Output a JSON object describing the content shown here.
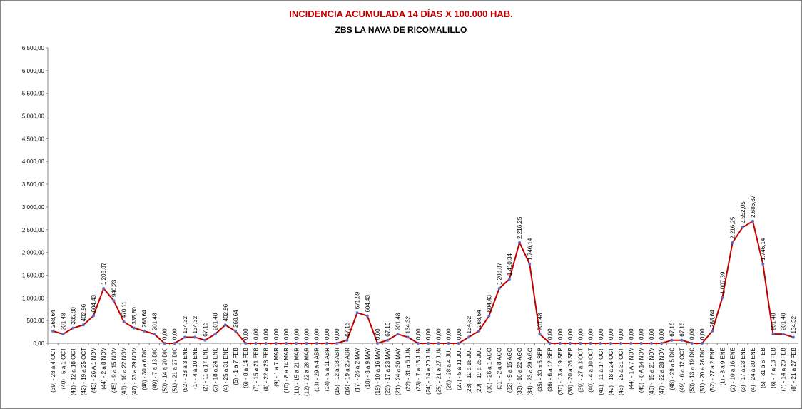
{
  "chart_data": {
    "type": "line",
    "title": "INCIDENCIA ACUMULADA 14 DÍAS X 100.000 HAB.",
    "subtitle": "ZBS LA NAVA DE RICOMALILLO",
    "categories": [
      "(39) - 28 a 4 OCT",
      "(40) - 5 a 1 OCT",
      "(41) - 12 a 18 OCT",
      "(42) - 19 a 25 OCT",
      "(43) - 26 A 1 NOV",
      "(44) - 2 a 8 NOV",
      "(45) - 9 a 15 NOV",
      "(46) - 16 a 22 NOV",
      "(47) - 23 a 29 NOV",
      "(48) - 30 a 6 DIC",
      "(49) - 7 a 13 DIC",
      "(50) - 14 a 20 DIC",
      "(51) - 21 a 27 DIC",
      "(52) - 28 a 3 ENE",
      "(1) - 4 a 10 ENE",
      "(2) - 11 a 17 ENE",
      "(3) - 18 a 24 ENE",
      "(4) - 25 a 31 ENE",
      "(5) - 1 a 7 FEB",
      "(6) - 8 a 14 FEB",
      "(7) - 15 a 21 FEB",
      "(8) - 22 a 28 FEB",
      "(9) - 1 a 7 MAR",
      "(10) - 8 a 14 MAR",
      "(11) - 15 a 21 MAR",
      "(12) - 22 a 28 MAR",
      "(13) - 29 a 4 ABR",
      "(14) - 5 a 11 ABR",
      "(15) - 12 a 18 ABR",
      "(16) - 19 a 25 ABR",
      "(17) - 26 a 2 MAY",
      "(18) - 3 a 9 MAY",
      "(19) - 10 a 16 MAY",
      "(20) - 17 a 23 MAY",
      "(21) - 24 a 30 MAY",
      "(22) - 31 a 6 JUN",
      "(23) - 7 a 13 JUN",
      "(24) - 14 a 20 JUN",
      "(25) - 21 a 27 JUN",
      "(26) - 28 a 4 JUL",
      "(27) - 5 a 11 JUL",
      "(28) - 12 a 18 JUL",
      "(29) - 19 a 25 JUL",
      "(30) - 26 a 1 AGO",
      "(31) - 2 a 8 AGO",
      "(32) - 9 a 15 AGO",
      "(33) - 16 a 22 AGO",
      "(34) - 23 a 29 AGO",
      "(35) - 30 a 5 SEP",
      "(36) - 6 a 12 SEP",
      "(37) - 13 a 19 SEP",
      "(38) - 20 a 26 SEP",
      "(39) - 27 a 3 OCT",
      "(40) - 4 a 10 OCT",
      "(41) - 11 a 17 OCT",
      "(42) - 18 a 24 OCT",
      "(43) - 25 a 31 OCT",
      "(44) - 1 A 7 NOV",
      "(45) - 8 A 14 NOV",
      "(46) - 15 a 21 NOV",
      "(47) - 22 a 28 NOV",
      "(48) - 29 a 5 DIC",
      "(49) - 6 a 12 OCT",
      "(50) - 13 a 19 DIC",
      "(51) - 20 a 26 DIC",
      "(52) - 27 a 2 ENE",
      "(1) - 3 a 9 ENE",
      "(2) - 10 a 16 ENE",
      "(3) - 17 a 23 ENE",
      "(4) - 24 a 30 ENE",
      "(5) - 31 a 6 FEB",
      "(6) - 7 a 13 FEB",
      "(7) - 14 a 20 FEB",
      "(8) - 21 a 27 FEB"
    ],
    "values": [
      268.64,
      201.48,
      335.8,
      402.96,
      604.43,
      1208.87,
      940.23,
      470.11,
      335.8,
      268.64,
      201.48,
      0,
      0,
      134.32,
      134.32,
      67.16,
      201.48,
      402.96,
      268.64,
      0,
      0,
      0,
      0,
      0,
      0,
      0,
      0,
      0,
      0,
      67.16,
      671.59,
      604.43,
      0,
      67.16,
      201.48,
      134.32,
      0,
      0,
      0,
      0,
      0,
      134.32,
      268.64,
      604.43,
      1208.87,
      1410.34,
      2216.25,
      1746.14,
      201.48,
      0,
      0,
      0,
      0,
      0,
      0,
      0,
      0,
      0,
      0,
      0,
      0,
      67.16,
      67.16,
      0,
      0,
      268.64,
      1007.39,
      2216.25,
      2552.05,
      2686.37,
      1746.14,
      201.48,
      201.48,
      134.32
    ],
    "value_labels": [
      "268,64",
      "201,48",
      "335,80",
      "402,96",
      "604,43",
      "1.208,87",
      "940,23",
      "470,11",
      "335,80",
      "268,64",
      "201,48",
      "0,00",
      "0,00",
      "134,32",
      "134,32",
      "67,16",
      "201,48",
      "402,96",
      "268,64",
      "0,00",
      "0,00",
      "0,00",
      "0,00",
      "0,00",
      "0,00",
      "0,00",
      "0,00",
      "0,00",
      "0,00",
      "67,16",
      "671,59",
      "604,43",
      "0,00",
      "67,16",
      "201,48",
      "134,32",
      "0,00",
      "0,00",
      "0,00",
      "0,00",
      "0,00",
      "134,32",
      "268,64",
      "604,43",
      "1.208,87",
      "1.410,34",
      "2.216,25",
      "1.746,14",
      "201,48",
      "0,00",
      "0,00",
      "0,00",
      "0,00",
      "0,00",
      "0,00",
      "0,00",
      "0,00",
      "0,00",
      "0,00",
      "0,00",
      "0,00",
      "67,16",
      "67,16",
      "0,00",
      "0,00",
      "268,64",
      "1.007,39",
      "2.216,25",
      "2.552,05",
      "2.686,37",
      "1.746,14",
      "201,48",
      "201,48",
      "134,32"
    ],
    "color": "#c00000",
    "marker_color": "#5b6fc4",
    "ylim": [
      0,
      6500
    ],
    "yticks": [
      {
        "value": 0,
        "label": "0,00"
      },
      {
        "value": 500,
        "label": "500,00"
      },
      {
        "value": 1000,
        "label": "1.000,00"
      },
      {
        "value": 1500,
        "label": "1.500,00"
      },
      {
        "value": 2000,
        "label": "2.000,00"
      },
      {
        "value": 2500,
        "label": "2.500,00"
      },
      {
        "value": 3000,
        "label": "3.000,00"
      },
      {
        "value": 3500,
        "label": "3.500,00"
      },
      {
        "value": 4000,
        "label": "4.000,00"
      },
      {
        "value": 4500,
        "label": "4.500,00"
      },
      {
        "value": 5000,
        "label": "5.000,00"
      },
      {
        "value": 5500,
        "label": "5.500,00"
      },
      {
        "value": 6000,
        "label": "6.000,00"
      },
      {
        "value": 6500,
        "label": "6.500,00"
      }
    ],
    "grid": false
  }
}
